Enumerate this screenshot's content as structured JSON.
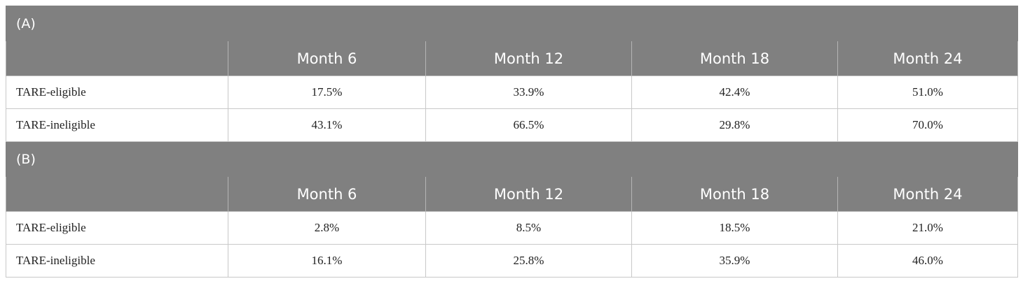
{
  "sections": [
    {
      "label": "(A)",
      "columns": [
        "Month 6",
        "Month 12",
        "Month 18",
        "Month 24"
      ],
      "rows": [
        {
          "label": "TARE-eligible",
          "cells": [
            "17.5%",
            "33.9%",
            "42.4%",
            "51.0%"
          ]
        },
        {
          "label": "TARE-ineligible",
          "cells": [
            "43.1%",
            "66.5%",
            "29.8%",
            "70.0%"
          ]
        }
      ]
    },
    {
      "label": "(B)",
      "columns": [
        "Month 6",
        "Month 12",
        "Month 18",
        "Month 24"
      ],
      "rows": [
        {
          "label": "TARE-eligible",
          "cells": [
            "2.8%",
            "8.5%",
            "18.5%",
            "21.0%"
          ]
        },
        {
          "label": "TARE-ineligible",
          "cells": [
            "16.1%",
            "25.8%",
            "35.9%",
            "46.0%"
          ]
        }
      ]
    }
  ]
}
